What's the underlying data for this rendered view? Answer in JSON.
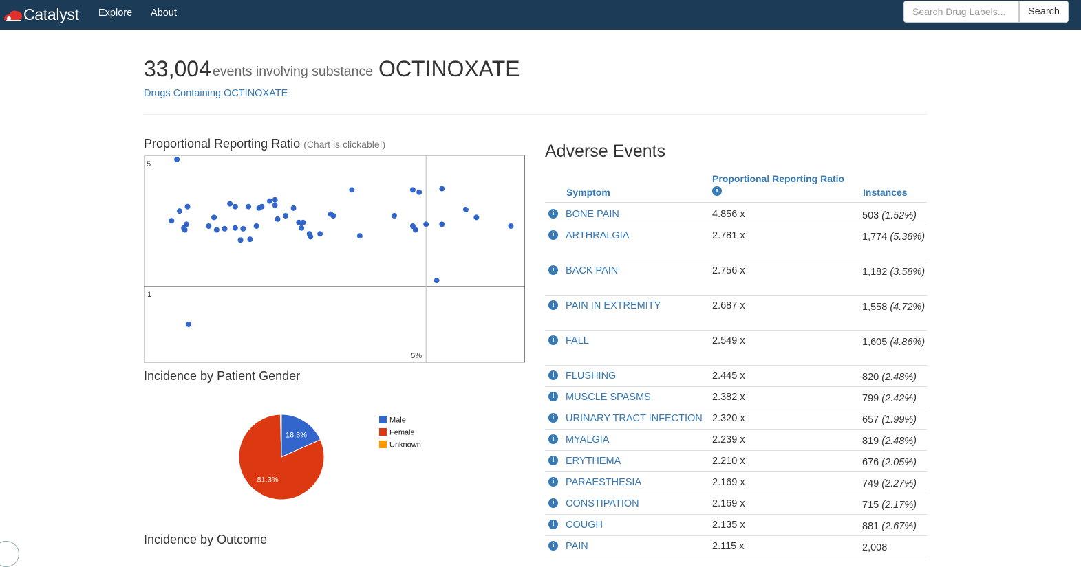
{
  "navbar": {
    "brand": "Catalyst",
    "links": [
      "Explore",
      "About"
    ],
    "search_placeholder": "Search Drug Labels...",
    "search_button": "Search",
    "colors": {
      "bar": "#1b3b57",
      "logo": "#e0312b"
    }
  },
  "header": {
    "count": "33,004",
    "middle_text": "events involving substance",
    "substance": "OCTINOXATE",
    "drugs_link": "Drugs Containing OCTINOXATE"
  },
  "prr_section": {
    "title": "Proportional Reporting Ratio",
    "note": "(Chart is clickable!)"
  },
  "chart_data": [
    {
      "type": "scatter",
      "title": "Proportional Reporting Ratio",
      "y_tick_labels": [
        "5",
        "1"
      ],
      "x_reference_label": "5%",
      "y_scale": "log",
      "y_range": [
        0.5,
        5
      ],
      "x_range": [
        0,
        6.75
      ],
      "reference_lines": {
        "y": 1,
        "x": 5
      },
      "point_color": "#3366cc",
      "points": [
        {
          "x": 0.3,
          "y": 5.0
        },
        {
          "x": 0.43,
          "y": 2.1
        },
        {
          "x": 0.2,
          "y": 2.3
        },
        {
          "x": 0.35,
          "y": 2.6
        },
        {
          "x": 0.5,
          "y": 2.75
        },
        {
          "x": 0.48,
          "y": 2.2
        },
        {
          "x": 0.45,
          "y": 2.05
        },
        {
          "x": 0.52,
          "y": 0.62
        },
        {
          "x": 0.9,
          "y": 2.15
        },
        {
          "x": 1.0,
          "y": 2.4
        },
        {
          "x": 1.05,
          "y": 2.05
        },
        {
          "x": 1.2,
          "y": 2.08
        },
        {
          "x": 1.3,
          "y": 2.85
        },
        {
          "x": 1.4,
          "y": 2.75
        },
        {
          "x": 1.4,
          "y": 2.1
        },
        {
          "x": 1.5,
          "y": 1.8
        },
        {
          "x": 1.55,
          "y": 2.08
        },
        {
          "x": 1.65,
          "y": 2.75
        },
        {
          "x": 1.68,
          "y": 1.82
        },
        {
          "x": 1.8,
          "y": 2.15
        },
        {
          "x": 1.85,
          "y": 2.7
        },
        {
          "x": 1.9,
          "y": 2.75
        },
        {
          "x": 2.05,
          "y": 2.95
        },
        {
          "x": 2.15,
          "y": 2.8
        },
        {
          "x": 2.15,
          "y": 3.0
        },
        {
          "x": 2.2,
          "y": 2.35
        },
        {
          "x": 2.35,
          "y": 2.45
        },
        {
          "x": 2.5,
          "y": 2.7
        },
        {
          "x": 2.6,
          "y": 2.25
        },
        {
          "x": 2.65,
          "y": 2.1
        },
        {
          "x": 2.68,
          "y": 2.25
        },
        {
          "x": 2.8,
          "y": 1.95
        },
        {
          "x": 2.82,
          "y": 1.88
        },
        {
          "x": 3.0,
          "y": 1.95
        },
        {
          "x": 3.2,
          "y": 2.5
        },
        {
          "x": 3.25,
          "y": 2.45
        },
        {
          "x": 3.6,
          "y": 3.4
        },
        {
          "x": 3.75,
          "y": 1.9
        },
        {
          "x": 4.4,
          "y": 2.45
        },
        {
          "x": 4.75,
          "y": 2.15
        },
        {
          "x": 4.75,
          "y": 3.4
        },
        {
          "x": 4.8,
          "y": 2.05
        },
        {
          "x": 4.87,
          "y": 3.3
        },
        {
          "x": 5.0,
          "y": 2.2
        },
        {
          "x": 5.2,
          "y": 1.08
        },
        {
          "x": 5.3,
          "y": 2.2
        },
        {
          "x": 5.3,
          "y": 3.45
        },
        {
          "x": 5.75,
          "y": 2.65
        },
        {
          "x": 5.95,
          "y": 2.4
        },
        {
          "x": 6.6,
          "y": 2.15
        }
      ]
    },
    {
      "type": "pie",
      "title": "Incidence by Patient Gender",
      "categories": [
        "Male",
        "Female",
        "Unknown"
      ],
      "values": [
        18.3,
        81.3,
        0.4
      ],
      "slice_labels": [
        "18.3%",
        "81.3%",
        ""
      ],
      "colors": [
        "#3366cc",
        "#dc3912",
        "#ff9900"
      ],
      "legend_position": "right"
    }
  ],
  "gender_section": {
    "title": "Incidence by Patient Gender"
  },
  "outcome_section": {
    "title": "Incidence by Outcome"
  },
  "adverse_events": {
    "title": "Adverse Events",
    "columns": {
      "symptom": "Symptom",
      "prr": "Proportional Reporting Ratio",
      "instances": "Instances"
    },
    "info_glyph": "i",
    "rows": [
      {
        "symptom": "BONE PAIN",
        "prr": "4.856 x",
        "count": "503",
        "pct": "(1.52%)"
      },
      {
        "symptom": "ARTHRALGIA",
        "prr": "2.781 x",
        "count": "1,774",
        "pct": "(5.38%)"
      },
      {
        "symptom": "BACK PAIN",
        "prr": "2.756 x",
        "count": "1,182",
        "pct": "(3.58%)"
      },
      {
        "symptom": "PAIN IN EXTREMITY",
        "prr": "2.687 x",
        "count": "1,558",
        "pct": "(4.72%)"
      },
      {
        "symptom": "FALL",
        "prr": "2.549 x",
        "count": "1,605",
        "pct": "(4.86%)"
      },
      {
        "symptom": "FLUSHING",
        "prr": "2.445 x",
        "count": "820",
        "pct": "(2.48%)"
      },
      {
        "symptom": "MUSCLE SPASMS",
        "prr": "2.382 x",
        "count": "799",
        "pct": "(2.42%)"
      },
      {
        "symptom": "URINARY TRACT INFECTION",
        "prr": "2.320 x",
        "count": "657",
        "pct": "(1.99%)"
      },
      {
        "symptom": "MYALGIA",
        "prr": "2.239 x",
        "count": "819",
        "pct": "(2.48%)"
      },
      {
        "symptom": "ERYTHEMA",
        "prr": "2.210 x",
        "count": "676",
        "pct": "(2.05%)"
      },
      {
        "symptom": "PARAESTHESIA",
        "prr": "2.169 x",
        "count": "749",
        "pct": "(2.27%)"
      },
      {
        "symptom": "CONSTIPATION",
        "prr": "2.169 x",
        "count": "715",
        "pct": "(2.17%)"
      },
      {
        "symptom": "COUGH",
        "prr": "2.135 x",
        "count": "881",
        "pct": "(2.67%)"
      },
      {
        "symptom": "PAIN",
        "prr": "2.115 x",
        "count": "2,008",
        "pct": ""
      }
    ]
  }
}
